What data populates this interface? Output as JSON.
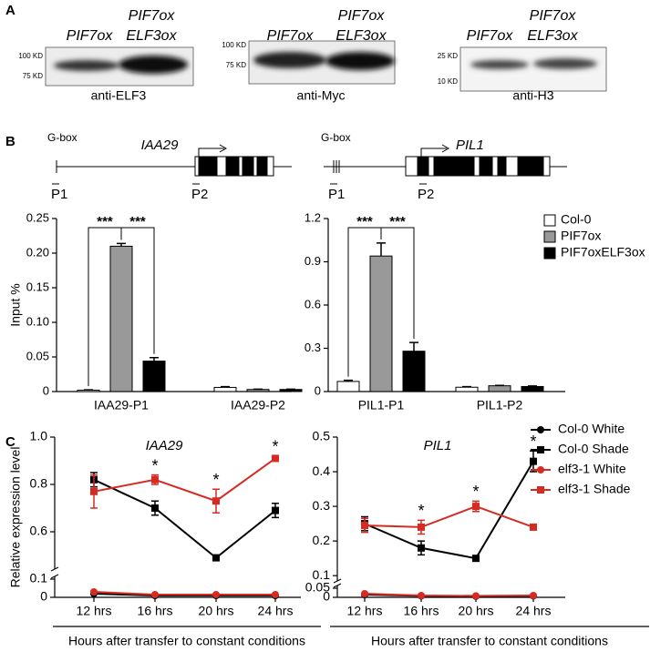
{
  "panel_labels": [
    "A",
    "B",
    "C"
  ],
  "blots": [
    {
      "lanes": [
        "PIF7ox",
        [
          "PIF7ox",
          "ELF3ox"
        ]
      ],
      "markers": [
        "100 KD",
        "75 KD"
      ],
      "antibody": "anti-ELF3"
    },
    {
      "lanes": [
        "PIF7ox",
        [
          "PIF7ox",
          "ELF3ox"
        ]
      ],
      "markers": [
        "100 KD",
        "75 KD"
      ],
      "antibody": "anti-Myc"
    },
    {
      "lanes": [
        "PIF7ox",
        [
          "PIF7ox",
          "ELF3ox"
        ]
      ],
      "markers": [
        "25 KD",
        "10 KD"
      ],
      "antibody": "anti-H3"
    }
  ],
  "genes": [
    {
      "gbox": "G-box",
      "name": "IAA29",
      "primers": [
        "P1",
        "P2"
      ]
    },
    {
      "gbox": "G-box",
      "name": "PIL1",
      "primers": [
        "P1",
        "P2"
      ]
    }
  ],
  "chart_data": [
    {
      "type": "bar",
      "ylabel": "Input %",
      "categories": [
        "IAA29-P1",
        "IAA29-P2"
      ],
      "series": [
        {
          "color": "#ffffff",
          "values": [
            0.002,
            0.006
          ],
          "errors": [
            0.0005,
            0.001
          ]
        },
        {
          "color": "#999999",
          "values": [
            0.21,
            0.003
          ],
          "errors": [
            0.004,
            0.0005
          ]
        },
        {
          "color": "#000000",
          "values": [
            0.044,
            0.003
          ],
          "errors": [
            0.005,
            0.0005
          ]
        }
      ],
      "ylim": [
        0,
        0.25
      ],
      "yticks": [
        0,
        0.05,
        {
          "value": 0.1,
          "label": "0.10"
        },
        0.15,
        {
          "value": 0.2,
          "label": "0.20"
        },
        0.25
      ],
      "significance": [
        "***",
        "***"
      ]
    },
    {
      "type": "bar",
      "categories": [
        "PIL1-P1",
        "PIL1-P2"
      ],
      "series": [
        {
          "name": "Col-0",
          "color": "#ffffff",
          "values": [
            0.07,
            0.03
          ],
          "errors": [
            0.008,
            0.004
          ]
        },
        {
          "name": "PIF7ox",
          "color": "#999999",
          "values": [
            0.94,
            0.04
          ],
          "errors": [
            0.09,
            0.003
          ]
        },
        {
          "name": "PIF7oxELF3ox",
          "color": "#000000",
          "values": [
            0.28,
            0.035
          ],
          "errors": [
            0.06,
            0.004
          ]
        }
      ],
      "ylim": [
        0,
        1.2
      ],
      "yticks": [
        0,
        0.3,
        0.6,
        0.9,
        1.2
      ],
      "significance": [
        "***",
        "***"
      ],
      "legend": "right"
    },
    {
      "type": "line",
      "title": "IAA29",
      "ylabel": "Relative  expression level",
      "xlabel": "Hours after transfer to constant conditions",
      "categories": [
        "12 hrs",
        "16 hrs",
        "20 hrs",
        "24 hrs"
      ],
      "series": [
        {
          "color": "#000000",
          "marker": "circle",
          "values": [
            0.02,
            0.01,
            0.01,
            0.01
          ]
        },
        {
          "color": "#000000",
          "marker": "square",
          "values": [
            0.82,
            0.7,
            0.49,
            0.69
          ],
          "errors": [
            0.03,
            0.03,
            0.005,
            0.03
          ]
        },
        {
          "color": "#d62b22",
          "marker": "circle",
          "values": [
            0.03,
            0.015,
            0.015,
            0.015
          ]
        },
        {
          "color": "#d62b22",
          "marker": "square",
          "values": [
            0.77,
            0.82,
            0.73,
            0.91
          ],
          "errors": [
            0.07,
            0.02,
            0.05,
            0.01
          ]
        }
      ],
      "ylim": [
        0.45,
        1.0
      ],
      "yticks": [
        0.6,
        0.8,
        {
          "value": 1,
          "label": "1.0"
        }
      ],
      "ylim_lower": [
        0,
        0.1
      ],
      "yticks_lower": [
        0,
        0.1
      ],
      "annotations": [
        null,
        "*",
        "*",
        "*"
      ]
    },
    {
      "type": "line",
      "title": "PIL1",
      "xlabel": "Hours after transfer to constant conditions",
      "categories": [
        "12 hrs",
        "16 hrs",
        "20 hrs",
        "24 hrs"
      ],
      "series": [
        {
          "name": "Col-0 White",
          "color": "#000000",
          "marker": "circle",
          "values": [
            0.015,
            0.008,
            0.006,
            0.008
          ]
        },
        {
          "name": "Col-0 Shade",
          "color": "#000000",
          "marker": "square",
          "values": [
            0.25,
            0.18,
            0.15,
            0.43
          ],
          "errors": [
            0.02,
            0.02,
            0.005,
            0.03
          ]
        },
        {
          "name": "elf3-1 White",
          "color": "#d62b22",
          "marker": "circle",
          "values": [
            0.02,
            0.01,
            0.008,
            0.01
          ]
        },
        {
          "name": "elf3-1 Shade",
          "color": "#d62b22",
          "marker": "square",
          "values": [
            0.245,
            0.24,
            0.3,
            0.24
          ],
          "errors": [
            0.02,
            0.02,
            0.015,
            0.005
          ]
        }
      ],
      "ylim": [
        0.09,
        0.5
      ],
      "yticks": [
        0.1,
        0.2,
        0.3,
        0.4,
        0.5
      ],
      "ylim_lower": [
        0,
        0.05
      ],
      "yticks_lower": [
        0,
        0.05
      ],
      "annotations": [
        null,
        "*",
        "*",
        "*"
      ],
      "legend": "right"
    }
  ]
}
